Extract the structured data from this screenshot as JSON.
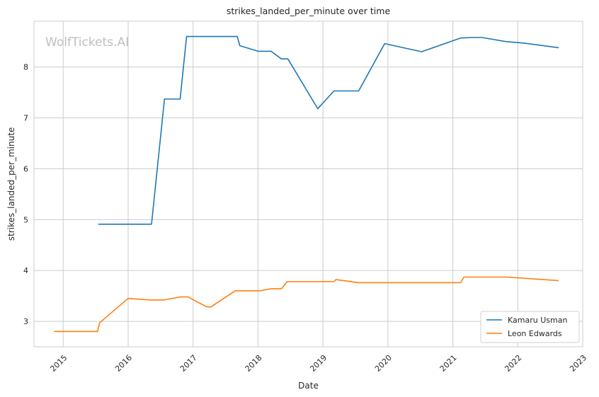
{
  "chart_data": {
    "type": "line",
    "title": "strikes_landed_per_minute over time",
    "xlabel": "Date",
    "ylabel": "strikes_landed_per_minute",
    "watermark": "WolfTickets.AI",
    "xlim": [
      2014.55,
      2023.0
    ],
    "ylim": [
      2.5,
      8.9
    ],
    "x_ticks": [
      2015,
      2016,
      2017,
      2018,
      2019,
      2020,
      2021,
      2022,
      2023
    ],
    "x_tick_labels": [
      "2015",
      "2016",
      "2017",
      "2018",
      "2019",
      "2020",
      "2021",
      "2022",
      "2023"
    ],
    "y_ticks": [
      3,
      4,
      5,
      6,
      7,
      8
    ],
    "y_tick_labels": [
      "3",
      "4",
      "5",
      "6",
      "7",
      "8"
    ],
    "grid": true,
    "legend_position": "bottom-right",
    "series": [
      {
        "name": "Kamaru Usman",
        "color": "#1f77b4",
        "x": [
          2015.54,
          2016.05,
          2016.36,
          2016.56,
          2016.8,
          2016.9,
          2017.25,
          2017.68,
          2017.72,
          2018.0,
          2018.2,
          2018.36,
          2018.46,
          2018.92,
          2019.17,
          2019.55,
          2019.95,
          2020.52,
          2021.12,
          2021.3,
          2021.45,
          2021.82,
          2022.1,
          2022.63
        ],
        "y": [
          4.91,
          4.91,
          4.91,
          7.37,
          7.37,
          8.6,
          8.6,
          8.6,
          8.42,
          8.31,
          8.31,
          8.16,
          8.16,
          7.18,
          7.53,
          7.53,
          8.46,
          8.3,
          8.57,
          8.58,
          8.58,
          8.5,
          8.47,
          8.38
        ]
      },
      {
        "name": "Leon Edwards",
        "color": "#ff7f0e",
        "x": [
          2014.86,
          2015.28,
          2015.53,
          2015.56,
          2016.0,
          2016.35,
          2016.56,
          2016.8,
          2016.92,
          2017.2,
          2017.27,
          2017.65,
          2018.03,
          2018.2,
          2018.36,
          2018.45,
          2019.17,
          2019.2,
          2019.55,
          2020.0,
          2021.12,
          2021.17,
          2021.5,
          2021.83,
          2022.63
        ],
        "y": [
          2.8,
          2.8,
          2.8,
          2.97,
          3.45,
          3.42,
          3.42,
          3.48,
          3.48,
          3.29,
          3.28,
          3.6,
          3.6,
          3.64,
          3.64,
          3.78,
          3.78,
          3.82,
          3.76,
          3.76,
          3.76,
          3.87,
          3.87,
          3.87,
          3.8
        ]
      }
    ]
  }
}
